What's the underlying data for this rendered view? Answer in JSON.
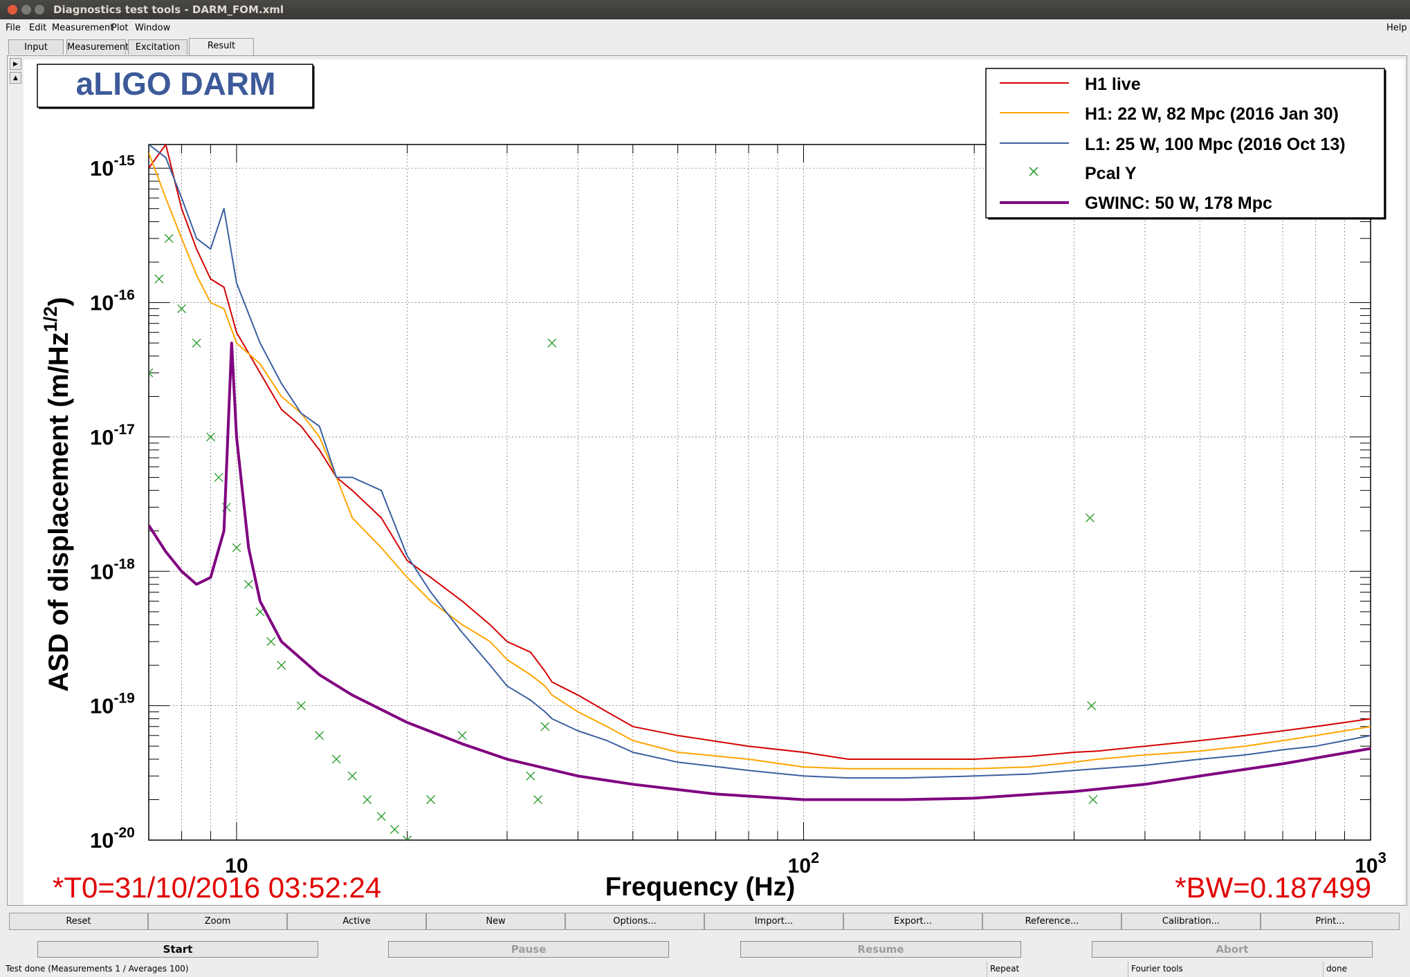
{
  "window": {
    "title": "Diagnostics test tools - DARM_FOM.xml"
  },
  "menu": {
    "file": "File",
    "edit": "Edit",
    "measurement": "Measurement",
    "plot": "Plot",
    "window": "Window",
    "help": "Help"
  },
  "tabs": [
    {
      "label": "Input"
    },
    {
      "label": "Measurement"
    },
    {
      "label": "Excitation"
    },
    {
      "label": "Result"
    }
  ],
  "plot": {
    "title_box": "aLIGO DARM",
    "t0": "*T0=31/10/2016 03:52:24",
    "bw": "*BW=0.187499"
  },
  "chart_data": {
    "type": "line",
    "xlabel": "Frequency (Hz)",
    "ylabel": "ASD of displacement (m/Hz^1/2)",
    "x_scale": "log",
    "y_scale": "log",
    "xlim": [
      7,
      1000
    ],
    "ylim": [
      1e-20,
      1.5e-15
    ],
    "grid": true,
    "legend_position": "top-right",
    "x_ticks": [
      "10",
      "10^2",
      "10^3"
    ],
    "y_ticks": [
      "10^-15",
      "10^-16",
      "10^-17",
      "10^-18",
      "10^-19",
      "10^-20"
    ],
    "series": [
      {
        "name": "H1 live",
        "color": "#d40000",
        "style": "line",
        "x": [
          7,
          7.5,
          8,
          8.5,
          9,
          9.5,
          10,
          11,
          12,
          13,
          14,
          15,
          16,
          18,
          20,
          22,
          25,
          28,
          30,
          33,
          35,
          36,
          40,
          45,
          50,
          60,
          80,
          100,
          120,
          150,
          200,
          250,
          300,
          330,
          400,
          500,
          600,
          700,
          800,
          900,
          1000
        ],
        "y": [
          1e-15,
          1.5e-15,
          5e-16,
          2.5e-16,
          1.5e-16,
          1.3e-16,
          6e-17,
          3e-17,
          1.6e-17,
          1.2e-17,
          8e-18,
          5e-18,
          4e-18,
          2.5e-18,
          1.2e-18,
          9e-19,
          6e-19,
          4e-19,
          3e-19,
          2.5e-19,
          1.8e-19,
          1.5e-19,
          1.2e-19,
          9e-20,
          7e-20,
          6e-20,
          5e-20,
          4.5e-20,
          4e-20,
          4e-20,
          4e-20,
          4.2e-20,
          4.5e-20,
          4.6e-20,
          5e-20,
          5.5e-20,
          6e-20,
          6.5e-20,
          7e-20,
          7.5e-20,
          8e-20
        ]
      },
      {
        "name": "H1: 22 W, 82 Mpc (2016 Jan 30)",
        "color": "#ffa500",
        "style": "line",
        "x": [
          7,
          7.5,
          8,
          8.5,
          9,
          9.5,
          10,
          11,
          12,
          13,
          14,
          15,
          16,
          18,
          20,
          22,
          25,
          28,
          30,
          33,
          35,
          36,
          40,
          45,
          50,
          60,
          80,
          100,
          120,
          150,
          200,
          250,
          300,
          330,
          400,
          500,
          600,
          700,
          800,
          900,
          1000
        ],
        "y": [
          1.3e-15,
          6e-16,
          3e-16,
          1.6e-16,
          1e-16,
          9e-17,
          5e-17,
          3.5e-17,
          2e-17,
          1.5e-17,
          1e-17,
          5e-18,
          2.5e-18,
          1.5e-18,
          9e-19,
          6e-19,
          4e-19,
          3e-19,
          2.2e-19,
          1.7e-19,
          1.4e-19,
          1.2e-19,
          9e-20,
          7e-20,
          5.5e-20,
          4.5e-20,
          4e-20,
          3.5e-20,
          3.4e-20,
          3.4e-20,
          3.4e-20,
          3.5e-20,
          3.8e-20,
          4e-20,
          4.3e-20,
          4.6e-20,
          5e-20,
          5.5e-20,
          6e-20,
          6.5e-20,
          7e-20
        ]
      },
      {
        "name": "L1: 25 W, 100 Mpc (2016 Oct 13)",
        "color": "#3a5fa0",
        "style": "line",
        "x": [
          7,
          7.5,
          8,
          8.5,
          9,
          9.5,
          10,
          11,
          12,
          13,
          14,
          15,
          16,
          18,
          20,
          22,
          25,
          28,
          30,
          33,
          35,
          36,
          40,
          45,
          50,
          60,
          80,
          100,
          120,
          150,
          200,
          250,
          300,
          330,
          400,
          500,
          600,
          700,
          800,
          900,
          1000
        ],
        "y": [
          1.5e-15,
          1.2e-15,
          6e-16,
          3e-16,
          2.5e-16,
          5e-16,
          1.4e-16,
          5e-17,
          2.5e-17,
          1.5e-17,
          1.2e-17,
          5e-18,
          5e-18,
          4e-18,
          1.3e-18,
          7e-19,
          3.5e-19,
          2e-19,
          1.4e-19,
          1.1e-19,
          9e-20,
          8e-20,
          6.5e-20,
          5.5e-20,
          4.5e-20,
          3.8e-20,
          3.3e-20,
          3e-20,
          2.9e-20,
          2.9e-20,
          3e-20,
          3.1e-20,
          3.3e-20,
          3.4e-20,
          3.6e-20,
          4e-20,
          4.3e-20,
          4.7e-20,
          5e-20,
          5.5e-20,
          6e-20
        ]
      },
      {
        "name": "Pcal Y",
        "color": "#2e9e2e",
        "style": "x-marker",
        "x": [
          7,
          7.3,
          7.6,
          8,
          8.5,
          9,
          9.3,
          9.6,
          10,
          10.5,
          11,
          11.5,
          12,
          13,
          14,
          15,
          16,
          17,
          18,
          19,
          20,
          22,
          25,
          33,
          34,
          35,
          36,
          320,
          322,
          324
        ],
        "y": [
          3e-17,
          1.5e-16,
          3e-16,
          9e-17,
          5e-17,
          1e-17,
          5e-18,
          3e-18,
          1.5e-18,
          8e-19,
          5e-19,
          3e-19,
          2e-19,
          1e-19,
          6e-20,
          4e-20,
          3e-20,
          2e-20,
          1.5e-20,
          1.2e-20,
          1e-20,
          2e-20,
          6e-20,
          3e-20,
          2e-20,
          7e-20,
          5e-17,
          2.5e-18,
          1e-19,
          2e-20
        ]
      },
      {
        "name": "GWINC: 50 W, 178 Mpc",
        "color": "#800080",
        "style": "line",
        "x": [
          7,
          7.5,
          8,
          8.5,
          9,
          9.5,
          9.8,
          10,
          10.5,
          11,
          12,
          14,
          16,
          20,
          25,
          30,
          40,
          50,
          70,
          100,
          150,
          200,
          300,
          400,
          500,
          700,
          1000
        ],
        "y": [
          2.2e-18,
          1.4e-18,
          1e-18,
          8e-19,
          9e-19,
          2e-18,
          5e-17,
          1e-17,
          1.5e-18,
          6e-19,
          3e-19,
          1.7e-19,
          1.2e-19,
          7.5e-20,
          5.2e-20,
          4e-20,
          3e-20,
          2.6e-20,
          2.2e-20,
          2e-20,
          2e-20,
          2.05e-20,
          2.3e-20,
          2.6e-20,
          3e-20,
          3.7e-20,
          4.8e-20
        ]
      }
    ]
  },
  "toolbar": [
    {
      "label": "Reset"
    },
    {
      "label": "Zoom"
    },
    {
      "label": "Active"
    },
    {
      "label": "New"
    },
    {
      "label": "Options..."
    },
    {
      "label": "Import..."
    },
    {
      "label": "Export..."
    },
    {
      "label": "Reference..."
    },
    {
      "label": "Calibration..."
    },
    {
      "label": "Print..."
    }
  ],
  "controls": {
    "start": "Start",
    "pause": "Pause",
    "resume": "Resume",
    "abort": "Abort"
  },
  "status": {
    "message": "Test done (Measurements 1 / Averages 100)",
    "repeat": "Repeat",
    "tools": "Fourier tools",
    "state": "done"
  }
}
